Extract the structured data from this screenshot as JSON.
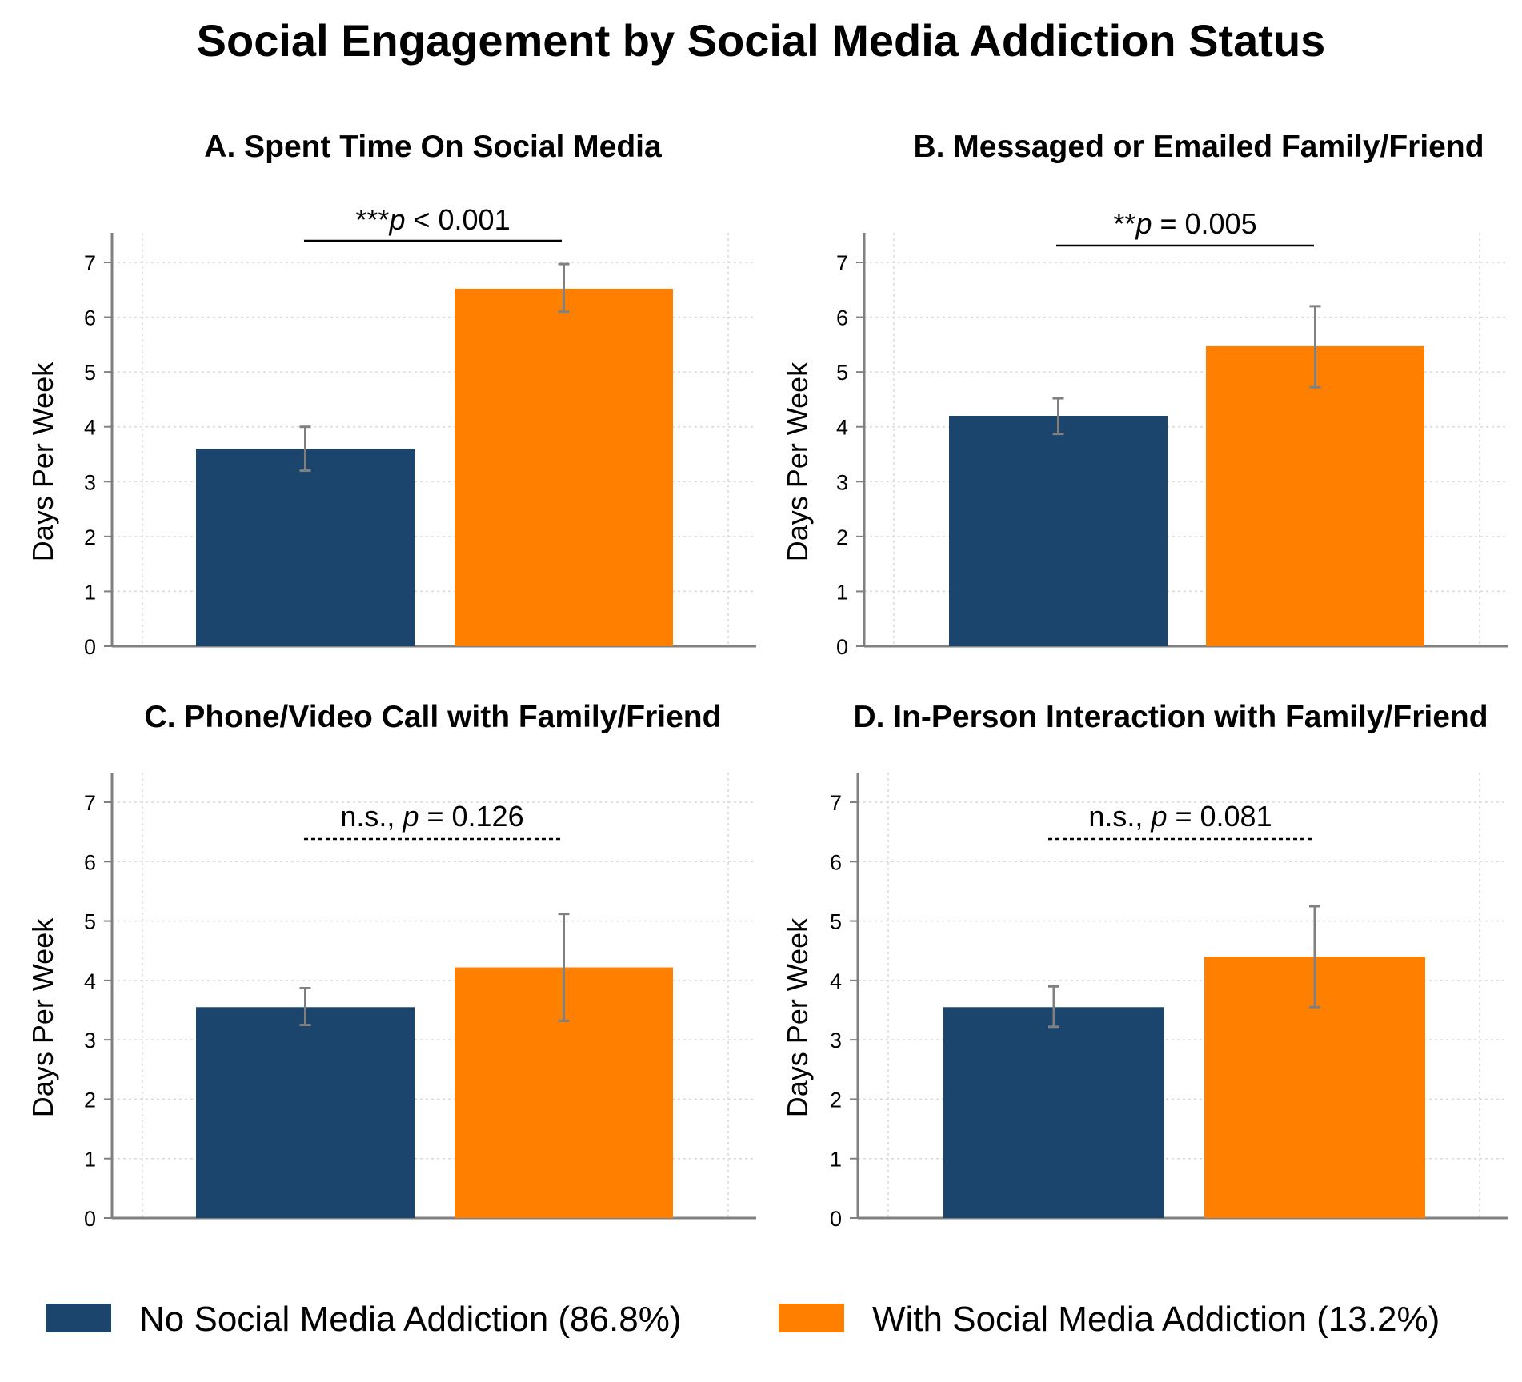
{
  "title": "Social Engagement by Social Media Addiction Status",
  "colors": {
    "no_addiction": "#1b456d",
    "addiction": "#ff7f00",
    "error_bar": "#808080",
    "axis": "#808080",
    "grid": "#d9d9d9"
  },
  "legend": [
    {
      "label": "No Social Media Addiction (86.8%)",
      "color": "#1b456d"
    },
    {
      "label": "With Social Media Addiction (13.2%)",
      "color": "#ff7f00"
    }
  ],
  "chart_data": [
    {
      "type": "bar",
      "title": "A. Spent Time On Social Media",
      "ylabel": "Days Per Week",
      "ylim": [
        0,
        7.5
      ],
      "yticks": [
        "0",
        "1",
        "2",
        "3",
        "4",
        "5",
        "6",
        "7"
      ],
      "grid": true,
      "series": [
        {
          "name": "No Social Media Addiction (86.8%)",
          "value": 3.6,
          "ci": [
            3.2,
            4.0
          ]
        },
        {
          "name": "With Social Media Addiction (13.2%)",
          "value": 6.52,
          "ci": [
            6.1,
            6.97
          ]
        }
      ],
      "annotation": {
        "stars": "***",
        "p": "p",
        "rest": " < 0.001",
        "style": "solid"
      }
    },
    {
      "type": "bar",
      "title": "B. Messaged or Emailed Family/Friend",
      "ylabel": "Days Per Week",
      "ylim": [
        0,
        7.5
      ],
      "yticks": [
        "0",
        "1",
        "2",
        "3",
        "4",
        "5",
        "6",
        "7"
      ],
      "grid": true,
      "series": [
        {
          "name": "No Social Media Addiction (86.8%)",
          "value": 4.2,
          "ci": [
            3.87,
            4.52
          ]
        },
        {
          "name": "With Social Media Addiction (13.2%)",
          "value": 5.47,
          "ci": [
            4.72,
            6.2
          ]
        }
      ],
      "annotation": {
        "stars": "**",
        "p": "p",
        "rest": " = 0.005",
        "style": "solid"
      }
    },
    {
      "type": "bar",
      "title": "C. Phone/Video Call with Family/Friend",
      "ylabel": "Days Per Week",
      "ylim": [
        0,
        7.5
      ],
      "yticks": [
        "0",
        "1",
        "2",
        "3",
        "4",
        "5",
        "6",
        "7"
      ],
      "grid": true,
      "series": [
        {
          "name": "No Social Media Addiction (86.8%)",
          "value": 3.55,
          "ci": [
            3.25,
            3.87
          ]
        },
        {
          "name": "With Social Media Addiction (13.2%)",
          "value": 4.22,
          "ci": [
            3.32,
            5.12
          ]
        }
      ],
      "annotation": {
        "stars": "n.s., ",
        "p": "p",
        "rest": " = 0.126",
        "style": "dashed"
      }
    },
    {
      "type": "bar",
      "title": "D. In-Person Interaction with Family/Friend",
      "ylabel": "Days Per Week",
      "ylim": [
        0,
        7.5
      ],
      "yticks": [
        "0",
        "1",
        "2",
        "3",
        "4",
        "5",
        "6",
        "7"
      ],
      "grid": true,
      "series": [
        {
          "name": "No Social Media Addiction (86.8%)",
          "value": 3.55,
          "ci": [
            3.22,
            3.9
          ]
        },
        {
          "name": "With Social Media Addiction (13.2%)",
          "value": 4.4,
          "ci": [
            3.55,
            5.25
          ]
        }
      ],
      "annotation": {
        "stars": "n.s., ",
        "p": "p",
        "rest": " = 0.081",
        "style": "dashed"
      }
    }
  ]
}
